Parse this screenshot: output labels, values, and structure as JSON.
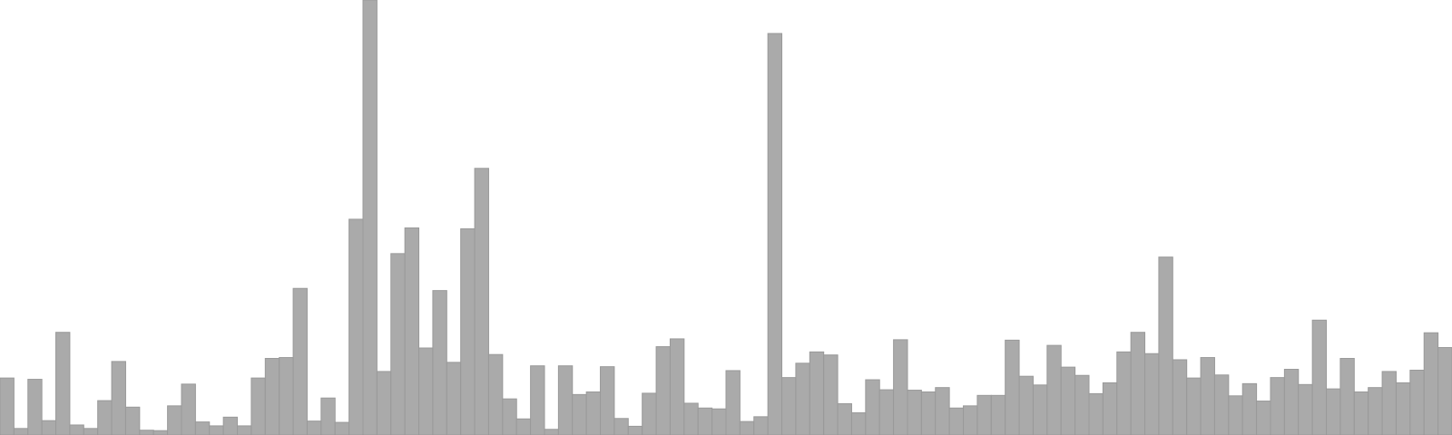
{
  "chart_data": {
    "type": "bar",
    "title": "",
    "xlabel": "",
    "ylabel": "",
    "ylim": [
      0,
      100
    ],
    "grid": false,
    "legend": "none",
    "bar_color": "#aaaaaa",
    "edge_color": "#999999",
    "values": [
      13.1,
      1.5,
      12.8,
      3.3,
      23.6,
      2.3,
      1.5,
      7.9,
      16.9,
      6.4,
      1.1,
      1.0,
      6.7,
      11.7,
      3.0,
      2.1,
      4.1,
      2.1,
      13.1,
      17.6,
      17.8,
      33.7,
      3.2,
      8.5,
      2.9,
      49.6,
      100.0,
      14.6,
      41.7,
      47.6,
      20.0,
      33.2,
      16.7,
      47.4,
      61.3,
      18.5,
      8.3,
      3.7,
      15.9,
      1.3,
      15.9,
      9.3,
      9.9,
      15.7,
      3.8,
      2.0,
      9.6,
      20.3,
      22.1,
      7.3,
      6.2,
      6.0,
      14.8,
      3.1,
      4.2,
      92.3,
      13.2,
      16.5,
      19.1,
      18.4,
      7.2,
      5.1,
      12.7,
      10.4,
      21.9,
      10.3,
      9.9,
      10.9,
      6.2,
      6.7,
      9.1,
      9.1,
      21.8,
      13.5,
      11.5,
      20.6,
      15.6,
      13.7,
      9.5,
      12.0,
      19.1,
      23.6,
      18.7,
      40.9,
      17.3,
      13.1,
      17.8,
      13.8,
      9.0,
      11.8,
      7.8,
      13.2,
      15.1,
      11.6,
      26.4,
      10.6,
      17.6,
      9.9,
      10.9,
      14.6,
      12.0,
      14.9,
      23.5,
      20.1
    ]
  }
}
